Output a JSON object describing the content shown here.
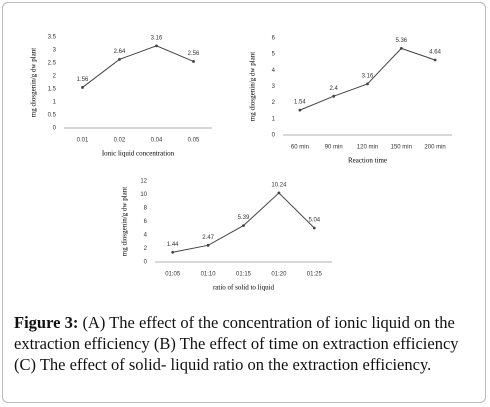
{
  "chart_data": [
    {
      "type": "line",
      "ylabel": "mg diosgenin/g dw plant",
      "xlabel": "Ionic liquid concentration",
      "categories": [
        "0.01",
        "0.02",
        "0.04",
        "0.05"
      ],
      "values": [
        1.56,
        2.64,
        3.16,
        2.56
      ],
      "color": "#444444",
      "ylim": [
        0,
        3.5
      ],
      "yticks": [
        0,
        0.5,
        1,
        1.5,
        2,
        2.5,
        3,
        3.5
      ]
    },
    {
      "type": "line",
      "ylabel": "mg diosgenin/g dw plant",
      "xlabel": "Reaction time",
      "categories": [
        "60 min",
        "90 min",
        "120 min",
        "150 min",
        "200 min"
      ],
      "values": [
        1.54,
        2.4,
        3.16,
        5.36,
        4.64
      ],
      "color": "#444444",
      "ylim": [
        0,
        6
      ],
      "yticks": [
        0,
        1,
        2,
        3,
        4,
        5,
        6
      ]
    },
    {
      "type": "line",
      "ylabel": "mg diosgenin/g dw plant",
      "xlabel": "ratio of solid to liquid",
      "categories": [
        "01:05",
        "01:10",
        "01:15",
        "01:20",
        "01:25"
      ],
      "values": [
        1.44,
        2.47,
        5.39,
        10.24,
        5.04
      ],
      "color": "#444444",
      "ylim": [
        0,
        12
      ],
      "yticks": [
        0,
        2,
        4,
        6,
        8,
        10,
        12
      ]
    }
  ],
  "caption": {
    "label": "Figure 3:",
    "text": "(A) The effect of the concentration of ionic liquid on the extraction efficiency (B) The effect of time on extraction efficiency (C) The effect of solid- liquid ratio on the extraction efficiency."
  }
}
